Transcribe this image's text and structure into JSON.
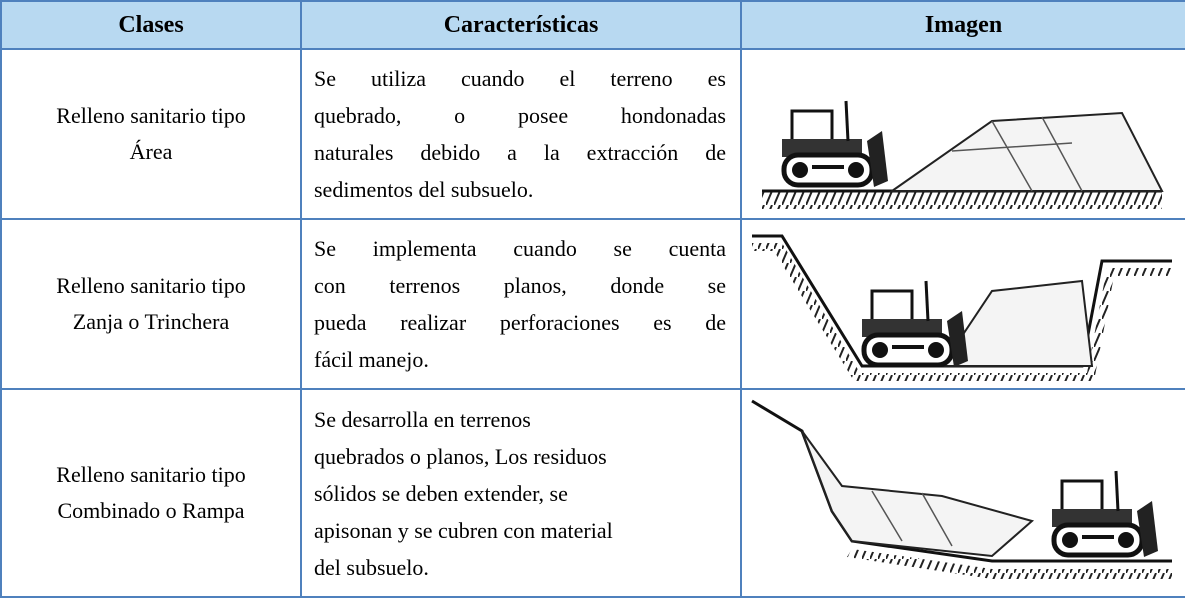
{
  "table": {
    "header": [
      "Clases",
      "Características",
      "Imagen"
    ],
    "rows": [
      {
        "class": [
          "Relleno sanitario tipo",
          "Área"
        ],
        "characteristics": [
          "Se utiliza cuando el terreno es",
          "quebrado, o posee hondonadas",
          "naturales debido a la extracción de",
          "sedimentos del subsuelo."
        ]
      },
      {
        "class": [
          "Relleno sanitario tipo",
          "Zanja o Trinchera"
        ],
        "characteristics": [
          "Se implementa cuando se cuenta",
          "con terrenos planos, donde se",
          "pueda realizar perforaciones es de",
          "fácil manejo."
        ]
      },
      {
        "class": [
          "Relleno sanitario tipo",
          "Combinado o Rampa"
        ],
        "characteristics": [
          "Se desarrolla en terrenos",
          "quebrados o planos, Los residuos",
          "sólidos se deben extender, se",
          "apisonan y se cubren con material",
          "del subsuelo."
        ]
      }
    ]
  }
}
